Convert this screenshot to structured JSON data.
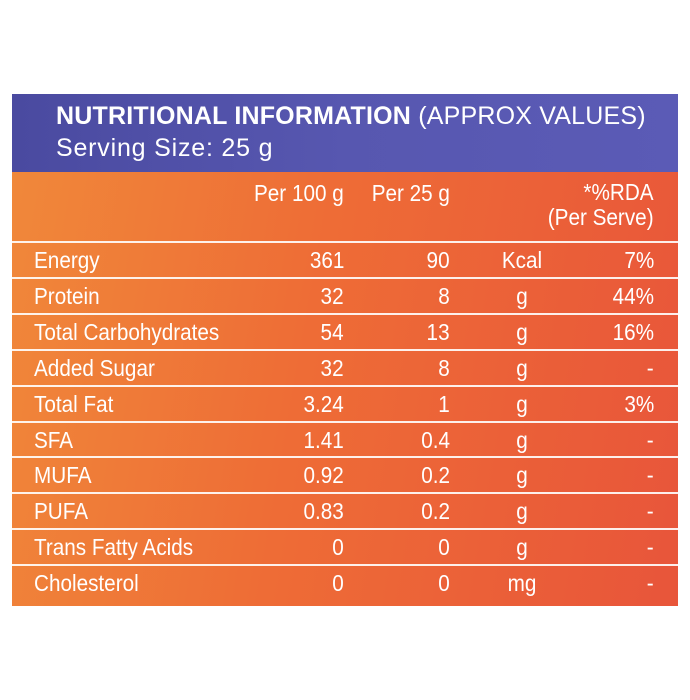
{
  "header": {
    "title_bold": "NUTRITIONAL INFORMATION",
    "title_light": "(APPROX VALUES)",
    "serving": "Serving Size: 25 g"
  },
  "columns": {
    "per100": "Per 100 g",
    "per25": "Per 25 g",
    "rda_line1": "*%RDA",
    "rda_line2": "(Per Serve)"
  },
  "rows": [
    {
      "name": "Energy",
      "per100": "361",
      "per25": "90",
      "unit": "Kcal",
      "rda": "7%"
    },
    {
      "name": "Protein",
      "per100": "32",
      "per25": "8",
      "unit": "g",
      "rda": "44%"
    },
    {
      "name": "Total Carbohydrates",
      "per100": "54",
      "per25": "13",
      "unit": "g",
      "rda": "16%"
    },
    {
      "name": "Added Sugar",
      "per100": "32",
      "per25": "8",
      "unit": "g",
      "rda": "-"
    },
    {
      "name": "Total Fat",
      "per100": "3.24",
      "per25": "1",
      "unit": "g",
      "rda": "3%"
    },
    {
      "name": "SFA",
      "per100": "1.41",
      "per25": "0.4",
      "unit": "g",
      "rda": "-"
    },
    {
      "name": "MUFA",
      "per100": "0.92",
      "per25": "0.2",
      "unit": "g",
      "rda": "-"
    },
    {
      "name": "PUFA",
      "per100": "0.83",
      "per25": "0.2",
      "unit": "g",
      "rda": "-"
    },
    {
      "name": "Trans Fatty Acids",
      "per100": "0",
      "per25": "0",
      "unit": "g",
      "rda": "-"
    },
    {
      "name": "Cholesterol",
      "per100": "0",
      "per25": "0",
      "unit": "mg",
      "rda": "-"
    }
  ],
  "colors": {
    "header_bg": "#5252aa",
    "panel_bg_start": "#f0893a",
    "panel_bg_end": "#e8553a",
    "text": "#ffffff"
  }
}
